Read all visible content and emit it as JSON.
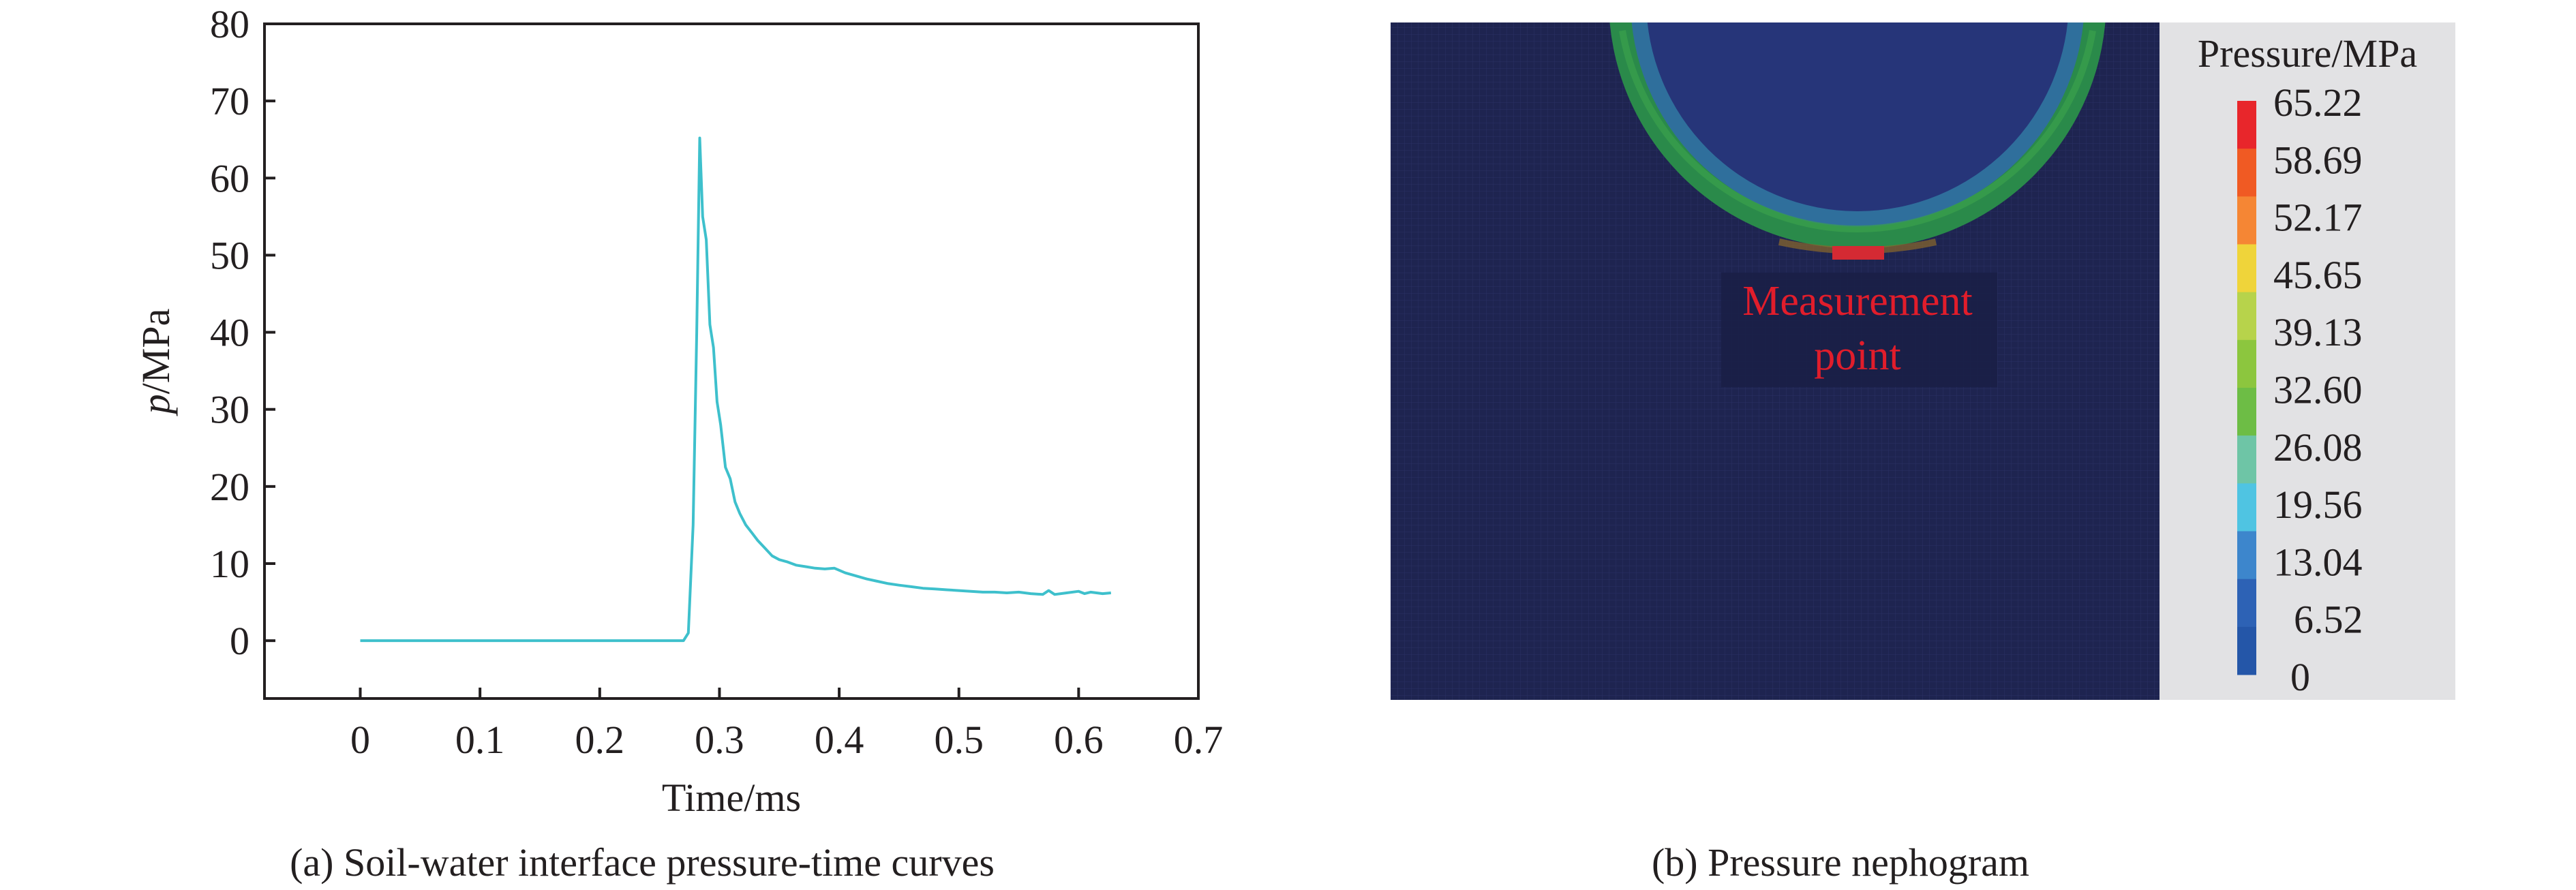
{
  "panel_a": {
    "caption": "(a) Soil-water interface pressure-time curves"
  },
  "panel_b": {
    "caption": "(b) Pressure nephogram",
    "measurement_label": [
      "Measurement",
      "point"
    ],
    "legend_title": "Pressure/MPa",
    "legend_levels": [
      "65.22",
      "58.69",
      "52.17",
      "45.65",
      "39.13",
      "32.60",
      "26.08",
      "19.56",
      "13.04",
      "6.52",
      "0"
    ],
    "legend_colors": [
      "#e8262b",
      "#f05a23",
      "#f58634",
      "#efd43a",
      "#b7d34b",
      "#8cc63e",
      "#6dbd45",
      "#6ec5a6",
      "#4fc4e2",
      "#3d86cc",
      "#2d62b5",
      "#2456a8"
    ],
    "background_color": "#1e2450",
    "marker_color": "#d42a33",
    "label_color": "#e11d2b"
  },
  "chart_data": {
    "type": "line",
    "title": "",
    "xlabel": "Time/ms",
    "ylabel_italic": "p",
    "ylabel_rest": "/MPa",
    "xlim": [
      -0.08,
      0.7
    ],
    "ylim": [
      -7.5,
      80
    ],
    "xticks": [
      0,
      0.1,
      0.2,
      0.3,
      0.4,
      0.5,
      0.6,
      0.7
    ],
    "xtick_labels": [
      "0",
      "0.1",
      "0.2",
      "0.3",
      "0.4",
      "0.5",
      "0.6",
      "0.7"
    ],
    "yticks": [
      0,
      10,
      20,
      30,
      40,
      50,
      60,
      70,
      80
    ],
    "ytick_labels": [
      "0",
      "10",
      "20",
      "30",
      "40",
      "50",
      "60",
      "70",
      "80"
    ],
    "grid": false,
    "line_color": "#3ec0cc",
    "series": [
      {
        "x": [
          0,
          0.1,
          0.2,
          0.27,
          0.274,
          0.278,
          0.281,
          0.2835,
          0.286,
          0.289,
          0.292,
          0.295,
          0.298,
          0.301,
          0.305,
          0.309,
          0.313,
          0.317,
          0.322,
          0.327,
          0.332,
          0.338,
          0.344,
          0.35,
          0.357,
          0.364,
          0.372,
          0.38,
          0.388,
          0.396,
          0.405,
          0.414,
          0.423,
          0.432,
          0.441,
          0.45,
          0.46,
          0.47,
          0.48,
          0.49,
          0.5,
          0.51,
          0.52,
          0.53,
          0.54,
          0.55,
          0.56,
          0.57,
          0.575,
          0.58,
          0.59,
          0.6,
          0.605,
          0.61,
          0.62,
          0.627
        ],
        "y": [
          0,
          0,
          0,
          0,
          1.0,
          15,
          40,
          65.2,
          55,
          52,
          41,
          38,
          31,
          28,
          22.5,
          21,
          18,
          16.5,
          15,
          14,
          13,
          12,
          11,
          10.5,
          10.2,
          9.8,
          9.6,
          9.4,
          9.3,
          9.4,
          8.8,
          8.4,
          8.0,
          7.7,
          7.4,
          7.2,
          7.0,
          6.8,
          6.7,
          6.6,
          6.5,
          6.4,
          6.3,
          6.3,
          6.2,
          6.3,
          6.1,
          6.0,
          6.5,
          6.0,
          6.2,
          6.4,
          6.1,
          6.3,
          6.1,
          6.2
        ]
      }
    ]
  }
}
